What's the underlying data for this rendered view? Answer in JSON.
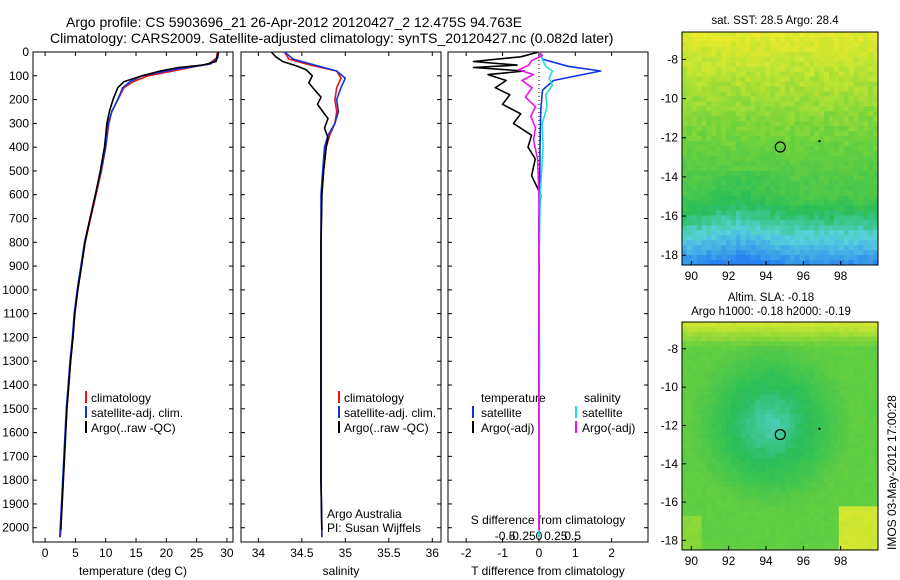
{
  "header": {
    "title_line1": "Argo profile: CS 5903696_21 26-Apr-2012 20120427_2 12.475S 94.763E",
    "title_line2": "Climatology: CARS2009. Satellite-adjusted climatology: synTS_20120427.nc (0.082d later)"
  },
  "colors": {
    "climatology": "#ee1111",
    "satellite_adj": "#1133dd",
    "argo": "#000000",
    "sat_salinity": "#22dddd",
    "argo_salinity_adj": "#ee11ee"
  },
  "chart_data": [
    {
      "type": "line",
      "name": "temperature-profile",
      "xlabel": "temperature (deg C)",
      "xlim": [
        -2,
        31
      ],
      "xticks": [
        0,
        5,
        10,
        15,
        20,
        25,
        30
      ],
      "ylim": [
        2060,
        0
      ],
      "yticks": [
        0,
        100,
        200,
        300,
        400,
        500,
        600,
        700,
        800,
        900,
        1000,
        1100,
        1200,
        1300,
        1400,
        1500,
        1600,
        1700,
        1800,
        1900,
        2000
      ],
      "legend": [
        "climatology",
        "satellite-adj. clim.",
        "Argo(..raw -QC)"
      ],
      "legend_position": "lower-center",
      "series": [
        {
          "name": "climatology",
          "color": "#ee1111",
          "points": [
            [
              28.4,
              0
            ],
            [
              28.3,
              25
            ],
            [
              27.0,
              50
            ],
            [
              22,
              75
            ],
            [
              17,
              100
            ],
            [
              14.5,
              125
            ],
            [
              13,
              150
            ],
            [
              12,
              200
            ],
            [
              11,
              250
            ],
            [
              10.5,
              300
            ],
            [
              10,
              400
            ],
            [
              9.3,
              500
            ],
            [
              8.4,
              600
            ],
            [
              7.5,
              700
            ],
            [
              6.6,
              800
            ],
            [
              6.0,
              900
            ],
            [
              5.4,
              1000
            ],
            [
              4.9,
              1100
            ],
            [
              4.6,
              1200
            ],
            [
              4.2,
              1300
            ],
            [
              3.9,
              1400
            ],
            [
              3.6,
              1500
            ],
            [
              3.4,
              1600
            ],
            [
              3.2,
              1700
            ],
            [
              3.0,
              1800
            ],
            [
              2.8,
              1900
            ],
            [
              2.6,
              2000
            ],
            [
              2.5,
              2040
            ]
          ]
        },
        {
          "name": "satellite-adj. clim.",
          "color": "#1133dd",
          "points": [
            [
              28.6,
              0
            ],
            [
              28.5,
              25
            ],
            [
              27.3,
              50
            ],
            [
              21,
              75
            ],
            [
              16,
              100
            ],
            [
              14,
              125
            ],
            [
              12.8,
              150
            ],
            [
              12,
              200
            ],
            [
              11,
              250
            ],
            [
              10.4,
              300
            ],
            [
              10,
              400
            ],
            [
              9.2,
              500
            ],
            [
              8.3,
              600
            ],
            [
              7.4,
              700
            ],
            [
              6.5,
              800
            ],
            [
              5.9,
              900
            ],
            [
              5.3,
              1000
            ],
            [
              4.8,
              1100
            ],
            [
              4.5,
              1200
            ],
            [
              4.1,
              1300
            ],
            [
              3.8,
              1400
            ],
            [
              3.5,
              1500
            ],
            [
              3.3,
              1600
            ],
            [
              3.1,
              1700
            ],
            [
              2.9,
              1800
            ],
            [
              2.7,
              1900
            ],
            [
              2.5,
              2000
            ],
            [
              2.4,
              2040
            ]
          ]
        },
        {
          "name": "Argo(..raw -QC)",
          "color": "#000000",
          "points": [
            [
              28.6,
              0
            ],
            [
              28.4,
              20
            ],
            [
              28.2,
              40
            ],
            [
              26,
              55
            ],
            [
              22,
              65
            ],
            [
              19,
              80
            ],
            [
              16,
              100
            ],
            [
              13,
              125
            ],
            [
              12,
              150
            ],
            [
              11.2,
              200
            ],
            [
              10.6,
              250
            ],
            [
              10.2,
              300
            ],
            [
              9.8,
              400
            ],
            [
              9.1,
              500
            ],
            [
              8.3,
              600
            ],
            [
              7.4,
              700
            ],
            [
              6.6,
              800
            ],
            [
              6.0,
              900
            ],
            [
              5.4,
              1000
            ],
            [
              4.9,
              1100
            ],
            [
              4.6,
              1200
            ],
            [
              4.2,
              1300
            ],
            [
              3.9,
              1400
            ],
            [
              3.6,
              1500
            ],
            [
              3.4,
              1600
            ],
            [
              3.2,
              1700
            ],
            [
              3.0,
              1800
            ],
            [
              2.8,
              1900
            ],
            [
              2.6,
              2000
            ],
            [
              2.6,
              2010
            ]
          ]
        }
      ]
    },
    {
      "type": "line",
      "name": "salinity-profile",
      "xlabel": "salinity",
      "xlim": [
        33.8,
        36.1
      ],
      "xticks": [
        34,
        34.5,
        35,
        35.5,
        36
      ],
      "ylim": [
        2060,
        0
      ],
      "legend": [
        "climatology",
        "satellite-adj. clim.",
        "Argo(..raw -QC)"
      ],
      "legend_position": "lower-center",
      "annotation": [
        "Argo Australia",
        "PI: Susan Wijffels"
      ],
      "series": [
        {
          "name": "climatology",
          "color": "#ee1111",
          "points": [
            [
              34.3,
              0
            ],
            [
              34.35,
              30
            ],
            [
              34.6,
              55
            ],
            [
              34.9,
              80
            ],
            [
              34.95,
              110
            ],
            [
              34.9,
              150
            ],
            [
              34.88,
              200
            ],
            [
              34.9,
              250
            ],
            [
              34.88,
              300
            ],
            [
              34.82,
              350
            ],
            [
              34.78,
              400
            ],
            [
              34.75,
              500
            ],
            [
              34.73,
              600
            ],
            [
              34.72,
              800
            ],
            [
              34.72,
              1000
            ],
            [
              34.72,
              1200
            ],
            [
              34.72,
              1400
            ],
            [
              34.72,
              1600
            ],
            [
              34.72,
              1800
            ],
            [
              34.73,
              2040
            ]
          ]
        },
        {
          "name": "satellite-adj. clim.",
          "color": "#1133dd",
          "points": [
            [
              34.3,
              0
            ],
            [
              34.4,
              30
            ],
            [
              34.65,
              55
            ],
            [
              34.9,
              80
            ],
            [
              35.0,
              110
            ],
            [
              34.95,
              150
            ],
            [
              34.9,
              200
            ],
            [
              34.92,
              250
            ],
            [
              34.88,
              300
            ],
            [
              34.8,
              350
            ],
            [
              34.76,
              400
            ],
            [
              34.74,
              500
            ],
            [
              34.72,
              600
            ],
            [
              34.72,
              800
            ],
            [
              34.72,
              1000
            ],
            [
              34.72,
              1200
            ],
            [
              34.72,
              1400
            ],
            [
              34.72,
              1600
            ],
            [
              34.72,
              1800
            ],
            [
              34.73,
              2040
            ]
          ]
        },
        {
          "name": "Argo(..raw -QC)",
          "color": "#000000",
          "points": [
            [
              34.15,
              0
            ],
            [
              34.2,
              20
            ],
            [
              34.28,
              40
            ],
            [
              34.45,
              60
            ],
            [
              34.55,
              75
            ],
            [
              34.62,
              100
            ],
            [
              34.58,
              130
            ],
            [
              34.65,
              160
            ],
            [
              34.72,
              190
            ],
            [
              34.68,
              220
            ],
            [
              34.74,
              250
            ],
            [
              34.8,
              280
            ],
            [
              34.76,
              320
            ],
            [
              34.8,
              360
            ],
            [
              34.78,
              400
            ],
            [
              34.75,
              500
            ],
            [
              34.73,
              600
            ],
            [
              34.72,
              800
            ],
            [
              34.72,
              1000
            ],
            [
              34.72,
              1200
            ],
            [
              34.72,
              1400
            ],
            [
              34.72,
              1600
            ],
            [
              34.72,
              1800
            ],
            [
              34.73,
              2010
            ]
          ]
        }
      ]
    },
    {
      "type": "line",
      "name": "difference-profile",
      "xlabel_bottom": "T difference from climatology",
      "xlim_T": [
        -2.5,
        3.0
      ],
      "xticks_T": [
        -2,
        -1,
        0,
        1,
        2
      ],
      "xlabel_top": "S difference from climatology",
      "xticks_S": [
        -0.5,
        -0.25,
        0,
        0.25,
        0.5
      ],
      "xtick_labels_S": [
        "-0.5",
        "-0.25",
        "0",
        "0.25",
        "0.5"
      ],
      "ylim": [
        2060,
        0
      ],
      "legend_temperature": {
        "heading": "temperature",
        "items": [
          "satellite",
          "Argo(-adj)"
        ]
      },
      "legend_salinity": {
        "heading": "salinity",
        "items": [
          "satellite",
          "Argo(-adj)"
        ]
      },
      "series": [
        {
          "name": "temperature satellite",
          "color": "#1133dd",
          "points": [
            [
              0,
              0
            ],
            [
              0.1,
              30
            ],
            [
              0.8,
              60
            ],
            [
              1.7,
              80
            ],
            [
              1.2,
              95
            ],
            [
              0.4,
              120
            ],
            [
              0.1,
              160
            ],
            [
              0.05,
              250
            ],
            [
              0.03,
              400
            ],
            [
              0.02,
              600
            ],
            [
              0.0,
              1000
            ],
            [
              0.0,
              1500
            ],
            [
              0.0,
              2040
            ]
          ]
        },
        {
          "name": "temperature Argo(-adj)",
          "color": "#000000",
          "points": [
            [
              0,
              0
            ],
            [
              -0.5,
              20
            ],
            [
              -1.8,
              40
            ],
            [
              -0.6,
              55
            ],
            [
              -1.8,
              65
            ],
            [
              -0.4,
              80
            ],
            [
              -1.4,
              95
            ],
            [
              -0.9,
              120
            ],
            [
              -1.2,
              150
            ],
            [
              -0.8,
              180
            ],
            [
              -1.0,
              220
            ],
            [
              -0.5,
              260
            ],
            [
              -0.7,
              300
            ],
            [
              -0.2,
              350
            ],
            [
              -0.3,
              400
            ],
            [
              -0.1,
              450
            ],
            [
              -0.2,
              520
            ],
            [
              0.05,
              600
            ],
            [
              0.0,
              700
            ],
            [
              0.0,
              900
            ],
            [
              0.0,
              1200
            ],
            [
              0.0,
              1500
            ],
            [
              0.0,
              2010
            ]
          ]
        },
        {
          "name": "salinity satellite",
          "color": "#22dddd",
          "points": [
            [
              0,
              0
            ],
            [
              0.05,
              30
            ],
            [
              0.1,
              60
            ],
            [
              0.2,
              80
            ],
            [
              0.15,
              110
            ],
            [
              0.2,
              140
            ],
            [
              0.1,
              180
            ],
            [
              0.12,
              230
            ],
            [
              0.05,
              300
            ],
            [
              0.06,
              400
            ],
            [
              0.02,
              600
            ],
            [
              0.0,
              900
            ],
            [
              0.01,
              1300
            ],
            [
              0.0,
              1600
            ],
            [
              0.0,
              2040
            ]
          ]
        },
        {
          "name": "salinity Argo(-adj)",
          "color": "#ee11ee",
          "points": [
            [
              0,
              0
            ],
            [
              0.05,
              15
            ],
            [
              -0.1,
              35
            ],
            [
              -0.15,
              55
            ],
            [
              -0.3,
              75
            ],
            [
              -0.08,
              95
            ],
            [
              -0.25,
              120
            ],
            [
              -0.1,
              150
            ],
            [
              -0.2,
              190
            ],
            [
              -0.05,
              230
            ],
            [
              -0.12,
              270
            ],
            [
              -0.05,
              320
            ],
            [
              -0.08,
              370
            ],
            [
              -0.02,
              450
            ],
            [
              0.0,
              600
            ],
            [
              0.0,
              900
            ],
            [
              0.0,
              1200
            ],
            [
              0.0,
              1500
            ],
            [
              0.0,
              2010
            ]
          ]
        }
      ]
    },
    {
      "type": "heatmap",
      "name": "sst-map",
      "title": "sat. SST: 28.5  Argo: 28.4",
      "xlim": [
        89.5,
        100
      ],
      "ylim": [
        -18.5,
        -6.6
      ],
      "xticks": [
        90,
        92,
        94,
        96,
        98
      ],
      "yticks": [
        -8,
        -10,
        -12,
        -14,
        -16,
        -18
      ],
      "argo_position": [
        94.763,
        -12.475
      ]
    },
    {
      "type": "heatmap",
      "name": "sla-map",
      "title_line1": "Altim. SLA: -0.18",
      "title_line2": "Argo h1000: -0.18 h2000: -0.19",
      "xlim": [
        89.5,
        100
      ],
      "ylim": [
        -18.5,
        -6.6
      ],
      "xticks": [
        90,
        92,
        94,
        96,
        98
      ],
      "yticks": [
        -8,
        -10,
        -12,
        -14,
        -16,
        -18
      ],
      "argo_position": [
        94.763,
        -12.475
      ]
    }
  ],
  "watermark": "IMOS 03-May-2012 17:00:28"
}
